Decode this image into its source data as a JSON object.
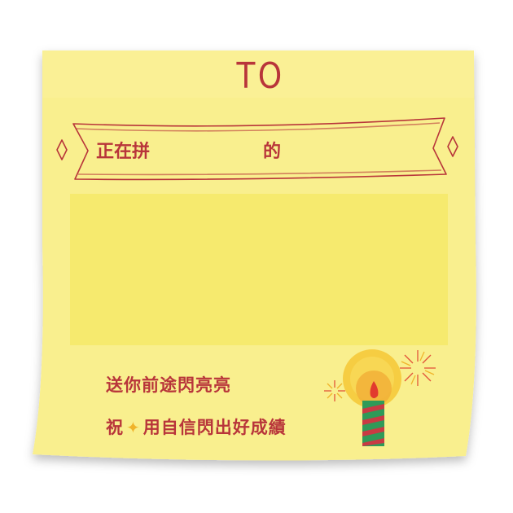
{
  "card": {
    "to_label": "TO",
    "banner_prefix": "正在拼",
    "banner_suffix": "的",
    "wish_line1": "送你前途閃亮亮",
    "wish_line2_prefix": "祝",
    "wish_line2_suffix": "用自信閃出好成績"
  },
  "colors": {
    "paper": "#f9ef8e",
    "message_box": "#f6ea6e",
    "text_red": "#b8353a",
    "star_gold": "#f0b32a"
  },
  "icons": [
    "sparkle-star-icon",
    "candle-icon",
    "firework-icon"
  ]
}
